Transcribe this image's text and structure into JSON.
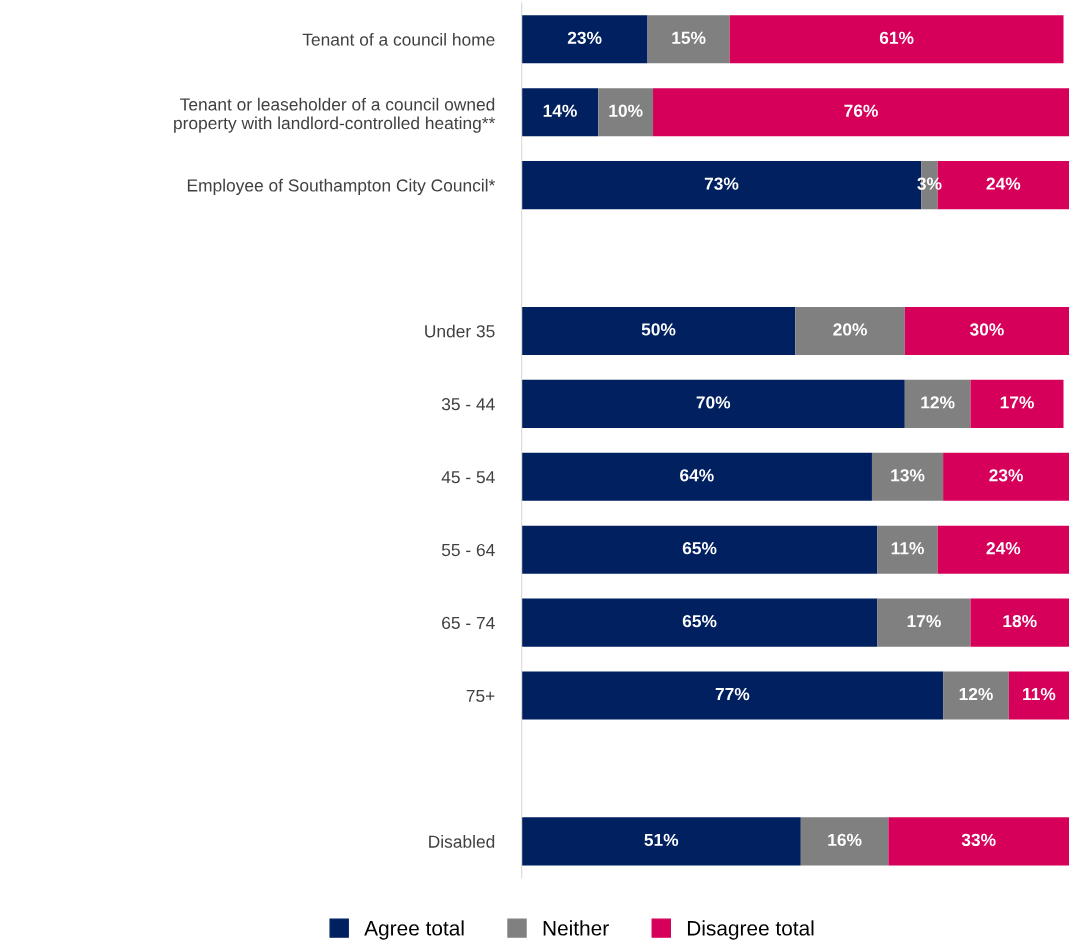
{
  "chart_data": {
    "type": "bar",
    "orientation": "horizontal",
    "stacked": true,
    "categories": [
      "Tenant of a council home",
      "Tenant or leaseholder of a council owned\nproperty with landlord-controlled heating**",
      "Employee of Southampton City Council*",
      null,
      "Under 35",
      "35 - 44",
      "45 - 54",
      "55 - 64",
      "65 - 74",
      "75+",
      null,
      "Disabled"
    ],
    "series": [
      {
        "name": "Agree total",
        "color": "#002060",
        "values": [
          23,
          14,
          73,
          null,
          50,
          70,
          64,
          65,
          65,
          77,
          null,
          51
        ],
        "value_labels": [
          "23%",
          "14%",
          "73%",
          null,
          "50%",
          "70%",
          "64%",
          "65%",
          "65%",
          "77%",
          null,
          "51%"
        ]
      },
      {
        "name": "Neither",
        "color": "#808080",
        "values": [
          15,
          10,
          3,
          null,
          20,
          12,
          13,
          11,
          17,
          12,
          null,
          16
        ],
        "value_labels": [
          "15%",
          "10%",
          "3%",
          null,
          "20%",
          "12%",
          "13%",
          "11%",
          "17%",
          "12%",
          null,
          "16%"
        ]
      },
      {
        "name": "Disagree total",
        "color": "#d6005a",
        "values": [
          61,
          76,
          24,
          null,
          30,
          17,
          23,
          24,
          18,
          11,
          null,
          33
        ],
        "value_labels": [
          "61%",
          "76%",
          "24%",
          null,
          "30%",
          "17%",
          "23%",
          "24%",
          "18%",
          "11%",
          null,
          "33%"
        ]
      }
    ],
    "legend": "bottom",
    "grid": false
  }
}
